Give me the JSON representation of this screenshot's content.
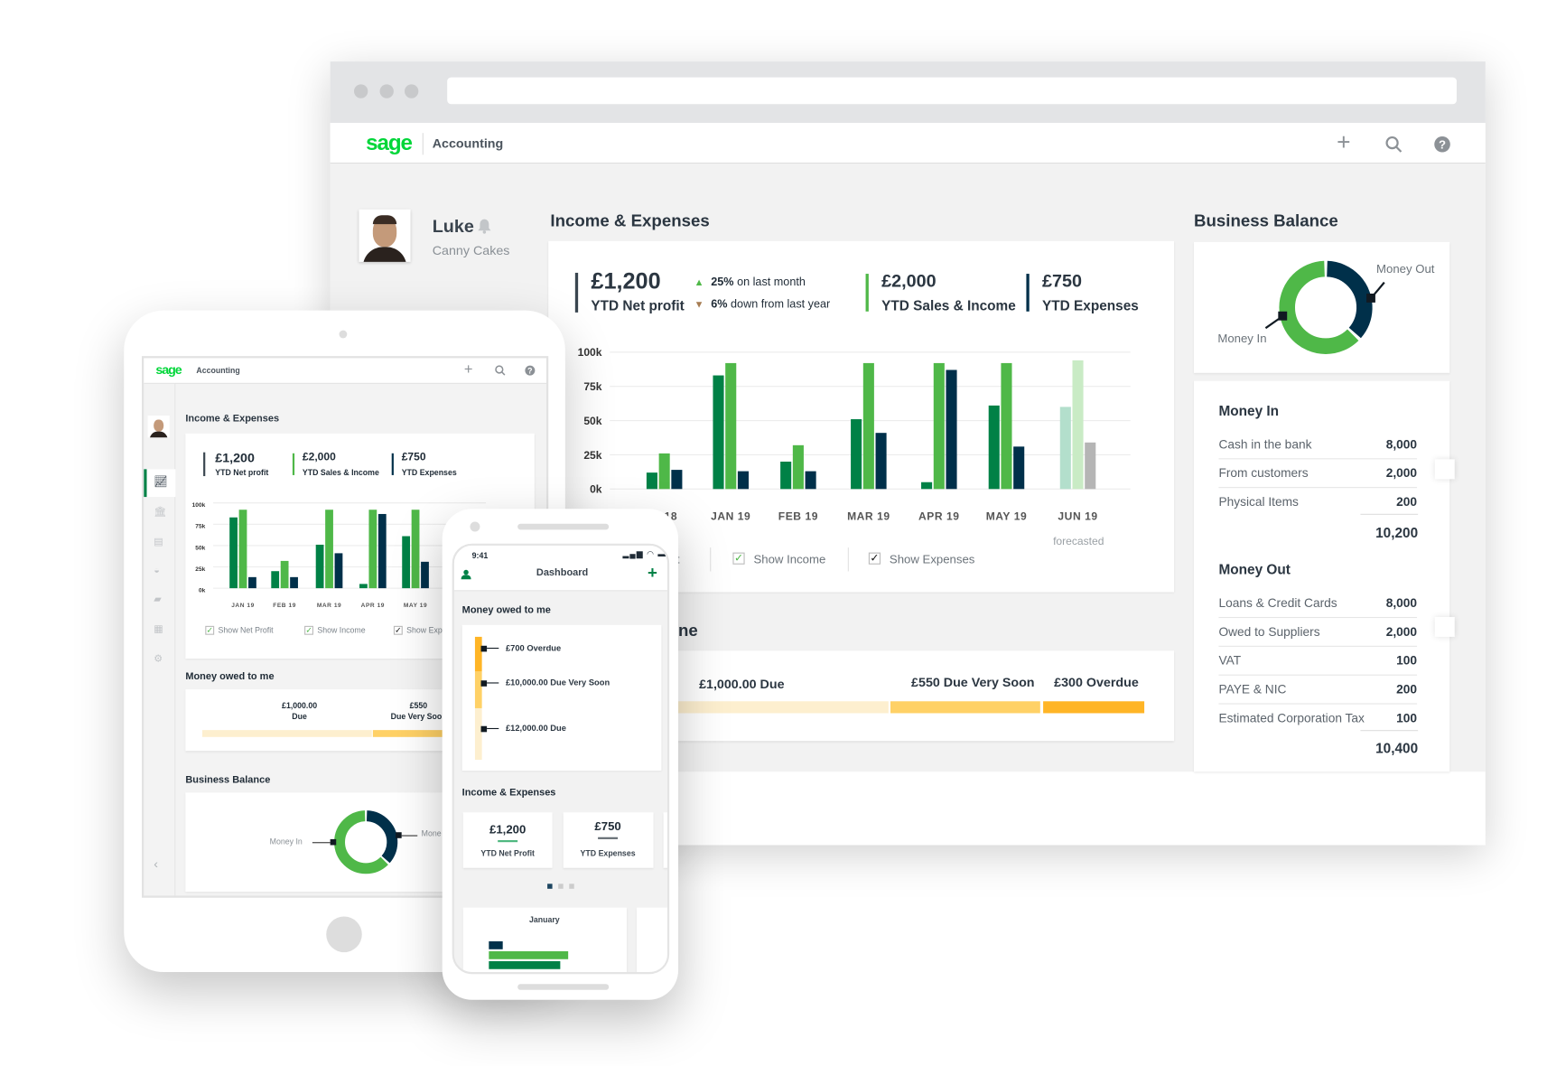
{
  "desktop": {
    "header": {
      "logo": "sage",
      "app_name": "Accounting",
      "icons": [
        "plus-icon",
        "search-icon",
        "help-icon"
      ]
    },
    "user": {
      "name": "Luke",
      "company": "Canny Cakes"
    },
    "income": {
      "title": "Income & Expenses",
      "kpis": [
        {
          "value": "£1,200",
          "label": "YTD Net profit"
        },
        {
          "value": "£2,000",
          "label": "YTD Sales & Income"
        },
        {
          "value": "£750",
          "label": "YTD Expenses"
        }
      ],
      "trends": [
        {
          "pct": "25%",
          "text": " on last month",
          "direction": "up"
        },
        {
          "pct": "6%",
          "text": " down from last year",
          "direction": "down"
        }
      ],
      "toggles": [
        {
          "label": "Show Net Profit",
          "visible_text": "t",
          "checked": true
        },
        {
          "label": "Show Income",
          "checked": true
        },
        {
          "label": "Show Expenses",
          "checked": true
        }
      ],
      "forecast_label": "forecasted"
    },
    "owed": {
      "title_visible": "ne",
      "segments": [
        {
          "label": "£1,000.00 Due",
          "color": "#fdefcf"
        },
        {
          "label": "£550 Due Very Soon",
          "color": "#ffd166"
        },
        {
          "label": "£300 Overdue",
          "color": "#ffb526"
        }
      ]
    },
    "balance": {
      "title": "Business Balance",
      "donut": {
        "money_in_label": "Money In",
        "money_out_label": "Money Out",
        "money_in_share": 0.63,
        "colors": {
          "in": "#4fb848",
          "out": "#00304a"
        }
      },
      "money_in": {
        "title": "Money In",
        "rows": [
          {
            "label": "Cash in the bank",
            "value": "8,000"
          },
          {
            "label": "From customers",
            "value": "2,000"
          },
          {
            "label": "Physical Items",
            "value": "200"
          }
        ],
        "total": "10,200"
      },
      "money_out": {
        "title": "Money Out",
        "rows": [
          {
            "label": "Loans & Credit Cards",
            "value": "8,000"
          },
          {
            "label": "Owed to Suppliers",
            "value": "2,000"
          },
          {
            "label": "VAT",
            "value": "100"
          },
          {
            "label": "PAYE & NIC",
            "value": "200"
          },
          {
            "label": "Estimated Corporation Tax",
            "value": "100"
          }
        ],
        "total": "10,400"
      }
    }
  },
  "tablet": {
    "header": {
      "logo": "sage",
      "app_name": "Accounting"
    },
    "sidebar": [
      "chart-icon",
      "bank-icon",
      "document-icon",
      "basket-icon",
      "truck-icon",
      "table-icon",
      "settings-icon"
    ],
    "income": {
      "title": "Income & Expenses",
      "kpis": [
        {
          "value": "£1,200",
          "label": "YTD Net profit"
        },
        {
          "value": "£2,000",
          "label": "YTD Sales & Income"
        },
        {
          "value": "£750",
          "label": "YTD Expenses"
        }
      ],
      "toggles": [
        "Show Net Profit",
        "Show Income",
        "Show Exp"
      ]
    },
    "owed": {
      "title": "Money owed to me",
      "segments": [
        {
          "amount": "£1,000.00",
          "label": "Due"
        },
        {
          "amount": "£550",
          "label": "Due Very Soo"
        }
      ]
    },
    "balance": {
      "title": "Business Balance",
      "money_in_label": "Money In",
      "money_out_label": "Mone"
    }
  },
  "phone": {
    "time": "9:41",
    "title": "Dashboard",
    "owed": {
      "title": "Money owed to me",
      "items": [
        "£700 Overdue",
        "£10,000.00 Due Very Soon",
        "£12,000.00 Due"
      ]
    },
    "income": {
      "title": "Income & Expenses",
      "kpis": [
        {
          "value": "£1,200",
          "label": "YTD Net Profit"
        },
        {
          "value": "£750",
          "label": "YTD Expenses"
        }
      ],
      "page": 1,
      "pages": 3
    },
    "month_card": {
      "title": "January"
    }
  },
  "chart_data": {
    "type": "bar",
    "categories": [
      "18",
      "JAN 19",
      "FEB 19",
      "MAR 19",
      "APR 19",
      "MAY 19",
      "JUN 19"
    ],
    "forecast_categories": [
      "JUN 19"
    ],
    "yticks": [
      "0k",
      "25k",
      "50k",
      "75k",
      "100k"
    ],
    "ylim": [
      0,
      100
    ],
    "unit": "k",
    "grid": true,
    "series": [
      {
        "values": [
          12,
          83,
          20,
          51,
          5,
          61,
          60
        ],
        "color": "#008146",
        "forecast_color": "#b3dfcc"
      },
      {
        "values": [
          26,
          92,
          32,
          92,
          92,
          92,
          94
        ],
        "color": "#4fb848",
        "forecast_color": "#c9ebc5"
      },
      {
        "values": [
          14,
          13,
          13,
          41,
          87,
          31,
          34
        ],
        "color": "#00304a",
        "forecast_color": "#b5b5b5"
      }
    ]
  }
}
